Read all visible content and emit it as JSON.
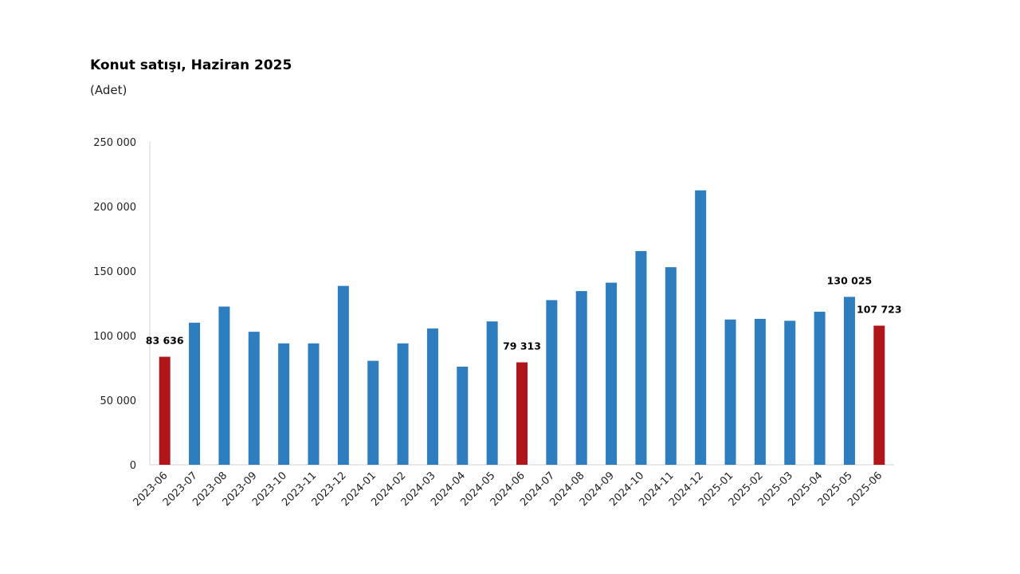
{
  "chart_data": {
    "type": "bar",
    "title": "Konut satışı, Haziran 2025",
    "subtitle": "(Adet)",
    "xlabel": "",
    "ylabel": "",
    "ylim": [
      0,
      250000
    ],
    "yticks": [
      0,
      50000,
      100000,
      150000,
      200000,
      250000
    ],
    "ytick_labels": [
      "0",
      "50 000",
      "100 000",
      "150 000",
      "200 000",
      "250 000"
    ],
    "grid": false,
    "categories": [
      "2023-06",
      "2023-07",
      "2023-08",
      "2023-09",
      "2023-10",
      "2023-11",
      "2023-12",
      "2024-01",
      "2024-02",
      "2024-03",
      "2024-04",
      "2024-05",
      "2024-06",
      "2024-07",
      "2024-08",
      "2024-09",
      "2024-10",
      "2024-11",
      "2024-12",
      "2025-01",
      "2025-02",
      "2025-03",
      "2025-04",
      "2025-05",
      "2025-06"
    ],
    "values": [
      83636,
      110000,
      122500,
      103000,
      94000,
      94000,
      138500,
      80500,
      94000,
      105500,
      76000,
      111000,
      79313,
      127500,
      134500,
      141000,
      165500,
      153000,
      212500,
      112500,
      113000,
      111500,
      118500,
      130025,
      107723
    ],
    "highlight_indices": [
      0,
      12,
      24
    ],
    "data_labels": [
      {
        "index": 0,
        "text": "83 636"
      },
      {
        "index": 12,
        "text": "79 313"
      },
      {
        "index": 23,
        "text": "130 025"
      },
      {
        "index": 24,
        "text": "107 723"
      }
    ],
    "colors": {
      "bar": "#2E7DBE",
      "highlight": "#B0151C",
      "axis": "#d0d0d0"
    }
  }
}
